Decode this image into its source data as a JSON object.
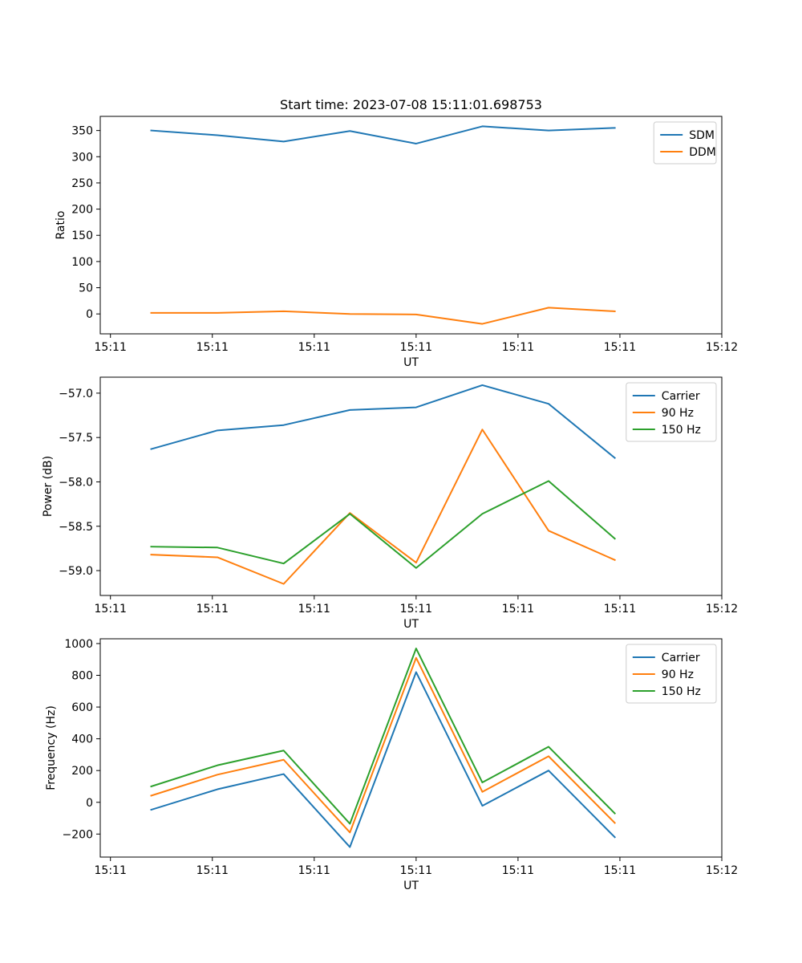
{
  "chart_data": [
    {
      "type": "line",
      "title": "Start time: 2023-07-08 15:11:01.698753",
      "xlabel": "UT",
      "ylabel": "Ratio",
      "x": [
        0.9,
        1.55,
        2.2,
        2.85,
        3.5,
        4.15,
        4.8,
        5.45
      ],
      "xlim": [
        0.4,
        6.5
      ],
      "xticks": [
        {
          "value": 0.5,
          "label": "15:11"
        },
        {
          "value": 1.5,
          "label": "15:11"
        },
        {
          "value": 2.5,
          "label": "15:11"
        },
        {
          "value": 3.5,
          "label": "15:11"
        },
        {
          "value": 4.5,
          "label": "15:11"
        },
        {
          "value": 5.5,
          "label": "15:11"
        },
        {
          "value": 6.5,
          "label": "15:12"
        }
      ],
      "ylim": [
        -38,
        377
      ],
      "yticks": [
        {
          "value": 0,
          "label": "0"
        },
        {
          "value": 50,
          "label": "50"
        },
        {
          "value": 100,
          "label": "100"
        },
        {
          "value": 150,
          "label": "150"
        },
        {
          "value": 200,
          "label": "200"
        },
        {
          "value": 250,
          "label": "250"
        },
        {
          "value": 300,
          "label": "300"
        },
        {
          "value": 350,
          "label": "350"
        }
      ],
      "legend_position": "top-right",
      "series": [
        {
          "name": "SDM",
          "color": "#1f77b4",
          "values": [
            350,
            341,
            329,
            349,
            325,
            358,
            350,
            355
          ]
        },
        {
          "name": "DDM",
          "color": "#ff7f0e",
          "values": [
            2,
            2,
            5,
            0,
            -1,
            -19,
            12,
            5
          ]
        }
      ]
    },
    {
      "type": "line",
      "title": "",
      "xlabel": "UT",
      "ylabel": "Power (dB)",
      "x": [
        0.9,
        1.55,
        2.2,
        2.85,
        3.5,
        4.15,
        4.8,
        5.45
      ],
      "xlim": [
        0.4,
        6.5
      ],
      "xticks": [
        {
          "value": 0.5,
          "label": "15:11"
        },
        {
          "value": 1.5,
          "label": "15:11"
        },
        {
          "value": 2.5,
          "label": "15:11"
        },
        {
          "value": 3.5,
          "label": "15:11"
        },
        {
          "value": 4.5,
          "label": "15:11"
        },
        {
          "value": 5.5,
          "label": "15:11"
        },
        {
          "value": 6.5,
          "label": "15:12"
        }
      ],
      "ylim": [
        -59.28,
        -56.82
      ],
      "yticks": [
        {
          "value": -59.0,
          "label": "−59.0"
        },
        {
          "value": -58.5,
          "label": "−58.5"
        },
        {
          "value": -58.0,
          "label": "−58.0"
        },
        {
          "value": -57.5,
          "label": "−57.5"
        },
        {
          "value": -57.0,
          "label": "−57.0"
        }
      ],
      "legend_position": "top-right",
      "series": [
        {
          "name": "Carrier",
          "color": "#1f77b4",
          "values": [
            -57.63,
            -57.42,
            -57.36,
            -57.19,
            -57.16,
            -56.91,
            -57.12,
            -57.73
          ]
        },
        {
          "name": "90 Hz",
          "color": "#ff7f0e",
          "values": [
            -58.82,
            -58.85,
            -59.15,
            -58.35,
            -58.91,
            -57.41,
            -58.55,
            -58.88
          ]
        },
        {
          "name": "150 Hz",
          "color": "#2ca02c",
          "values": [
            -58.73,
            -58.74,
            -58.92,
            -58.36,
            -58.97,
            -58.36,
            -57.99,
            -58.64
          ]
        }
      ]
    },
    {
      "type": "line",
      "title": "",
      "xlabel": "UT",
      "ylabel": "Frequency (Hz)",
      "x": [
        0.9,
        1.55,
        2.2,
        2.85,
        3.5,
        4.15,
        4.8,
        5.45
      ],
      "xlim": [
        0.4,
        6.5
      ],
      "xticks": [
        {
          "value": 0.5,
          "label": "15:11"
        },
        {
          "value": 1.5,
          "label": "15:11"
        },
        {
          "value": 2.5,
          "label": "15:11"
        },
        {
          "value": 3.5,
          "label": "15:11"
        },
        {
          "value": 4.5,
          "label": "15:11"
        },
        {
          "value": 5.5,
          "label": "15:11"
        },
        {
          "value": 6.5,
          "label": "15:12"
        }
      ],
      "ylim": [
        -345,
        1030
      ],
      "yticks": [
        {
          "value": -200,
          "label": "−200"
        },
        {
          "value": 0,
          "label": "0"
        },
        {
          "value": 200,
          "label": "200"
        },
        {
          "value": 400,
          "label": "400"
        },
        {
          "value": 600,
          "label": "600"
        },
        {
          "value": 800,
          "label": "800"
        },
        {
          "value": 1000,
          "label": "1000"
        }
      ],
      "legend_position": "top-right",
      "series": [
        {
          "name": "Carrier",
          "color": "#1f77b4",
          "values": [
            -47,
            82,
            178,
            -282,
            820,
            -22,
            200,
            -220
          ]
        },
        {
          "name": "90 Hz",
          "color": "#ff7f0e",
          "values": [
            42,
            174,
            268,
            -190,
            910,
            66,
            290,
            -130
          ]
        },
        {
          "name": "150 Hz",
          "color": "#2ca02c",
          "values": [
            100,
            233,
            326,
            -135,
            969,
            125,
            350,
            -70
          ]
        }
      ]
    }
  ]
}
